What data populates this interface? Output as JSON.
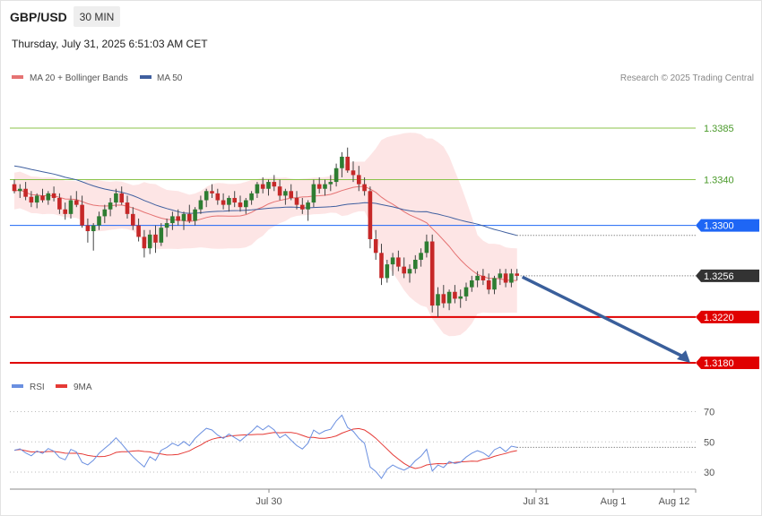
{
  "header": {
    "symbol": "GBP/USD",
    "timeframe": "30 MIN",
    "datetime": "Thursday, July 31, 2025 6:51:03 AM CET"
  },
  "legend": {
    "ma20": "MA 20 + Bollinger Bands",
    "ma50": "MA 50",
    "rsi": "RSI",
    "rsi_ma": "9MA"
  },
  "credit": "Research © 2025 Trading Central",
  "colors": {
    "bull": "#2e7d32",
    "bear": "#c62828",
    "ma20": "#e57373",
    "ma50": "#3f5f9f",
    "bands": "#fde0e0",
    "resistance": "#8bc34a",
    "pivot": "#1e66f5",
    "support": "#e00000",
    "last_price": "#333333",
    "rsi": "#6a8fe0",
    "rsi_ma": "#e53935",
    "arrow": "#3a5f9b"
  },
  "chart_data": {
    "type": "candlestick",
    "price_axis_ylim": [
      3.3125,
      1.341
    ],
    "levels": [
      {
        "value": 1.3385,
        "label": "1.3385",
        "kind": "resistance"
      },
      {
        "value": 1.334,
        "label": "1.3340",
        "kind": "resistance"
      },
      {
        "value": 1.33,
        "label": "1.3300",
        "kind": "pivot"
      },
      {
        "value": 1.3256,
        "label": "1.3256",
        "kind": "last"
      },
      {
        "value": 1.322,
        "label": "1.3220",
        "kind": "support"
      },
      {
        "value": 1.318,
        "label": "1.3180",
        "kind": "support"
      }
    ],
    "x_labels": [
      "Jul 30",
      "Jul 31",
      "Aug 1",
      "Aug 12"
    ],
    "rsi_ticks": [
      70,
      50,
      30
    ],
    "rsi_ylim": [
      18,
      82
    ],
    "forecast_arrow": {
      "from": 1.3255,
      "to": 1.318
    },
    "candles": [
      [
        1.3336,
        1.334,
        1.3328,
        1.333
      ],
      [
        1.333,
        1.3336,
        1.3324,
        1.3332
      ],
      [
        1.3332,
        1.3338,
        1.3322,
        1.3325
      ],
      [
        1.3325,
        1.333,
        1.3316,
        1.332
      ],
      [
        1.332,
        1.3328,
        1.3315,
        1.3326
      ],
      [
        1.3326,
        1.3332,
        1.332,
        1.3322
      ],
      [
        1.3322,
        1.333,
        1.3318,
        1.3328
      ],
      [
        1.3328,
        1.3334,
        1.3321,
        1.3324
      ],
      [
        1.3324,
        1.3328,
        1.331,
        1.3314
      ],
      [
        1.3314,
        1.332,
        1.3305,
        1.331
      ],
      [
        1.331,
        1.3326,
        1.3306,
        1.3322
      ],
      [
        1.3322,
        1.333,
        1.3316,
        1.3318
      ],
      [
        1.3318,
        1.3326,
        1.3298,
        1.33
      ],
      [
        1.33,
        1.3306,
        1.3285,
        1.3295
      ],
      [
        1.3295,
        1.3302,
        1.3278,
        1.33
      ],
      [
        1.33,
        1.3312,
        1.3296,
        1.3308
      ],
      [
        1.3308,
        1.3318,
        1.3302,
        1.3314
      ],
      [
        1.3314,
        1.3324,
        1.3308,
        1.332
      ],
      [
        1.332,
        1.3332,
        1.3316,
        1.3328
      ],
      [
        1.3328,
        1.3334,
        1.3318,
        1.332
      ],
      [
        1.332,
        1.3326,
        1.3306,
        1.331
      ],
      [
        1.331,
        1.3316,
        1.3296,
        1.33
      ],
      [
        1.33,
        1.3306,
        1.3286,
        1.329
      ],
      [
        1.329,
        1.3296,
        1.3272,
        1.328
      ],
      [
        1.328,
        1.3296,
        1.3275,
        1.3292
      ],
      [
        1.3292,
        1.33,
        1.3276,
        1.3285
      ],
      [
        1.3285,
        1.3302,
        1.3282,
        1.3298
      ],
      [
        1.3298,
        1.3306,
        1.329,
        1.3302
      ],
      [
        1.3302,
        1.3312,
        1.3296,
        1.3308
      ],
      [
        1.3308,
        1.3314,
        1.33,
        1.3304
      ],
      [
        1.3304,
        1.3312,
        1.3296,
        1.331
      ],
      [
        1.331,
        1.3318,
        1.3302,
        1.3304
      ],
      [
        1.3304,
        1.3316,
        1.33,
        1.3314
      ],
      [
        1.3314,
        1.3326,
        1.331,
        1.3322
      ],
      [
        1.3322,
        1.3332,
        1.3316,
        1.333
      ],
      [
        1.333,
        1.3336,
        1.3324,
        1.3328
      ],
      [
        1.3328,
        1.3332,
        1.3318,
        1.3322
      ],
      [
        1.3322,
        1.3328,
        1.3314,
        1.3318
      ],
      [
        1.3318,
        1.3326,
        1.3312,
        1.3324
      ],
      [
        1.3324,
        1.333,
        1.3316,
        1.332
      ],
      [
        1.332,
        1.3326,
        1.3312,
        1.3316
      ],
      [
        1.3316,
        1.3324,
        1.331,
        1.3322
      ],
      [
        1.3322,
        1.333,
        1.3318,
        1.3328
      ],
      [
        1.3328,
        1.3338,
        1.3324,
        1.3336
      ],
      [
        1.3336,
        1.3342,
        1.3328,
        1.3332
      ],
      [
        1.3332,
        1.334,
        1.3326,
        1.3338
      ],
      [
        1.3338,
        1.3344,
        1.333,
        1.3334
      ],
      [
        1.3334,
        1.334,
        1.3322,
        1.3326
      ],
      [
        1.3326,
        1.3332,
        1.3318,
        1.333
      ],
      [
        1.333,
        1.3336,
        1.3322,
        1.3324
      ],
      [
        1.3324,
        1.333,
        1.3314,
        1.3318
      ],
      [
        1.3318,
        1.3324,
        1.331,
        1.3314
      ],
      [
        1.3314,
        1.3322,
        1.3304,
        1.332
      ],
      [
        1.332,
        1.334,
        1.3316,
        1.3336
      ],
      [
        1.3336,
        1.3342,
        1.3328,
        1.3332
      ],
      [
        1.3332,
        1.334,
        1.3326,
        1.3336
      ],
      [
        1.3336,
        1.3344,
        1.333,
        1.3338
      ],
      [
        1.3338,
        1.3354,
        1.3334,
        1.335
      ],
      [
        1.335,
        1.3364,
        1.3342,
        1.336
      ],
      [
        1.336,
        1.3368,
        1.3346,
        1.3348
      ],
      [
        1.3348,
        1.3356,
        1.3338,
        1.3344
      ],
      [
        1.3344,
        1.3352,
        1.333,
        1.3336
      ],
      [
        1.3336,
        1.3342,
        1.3326,
        1.333
      ],
      [
        1.333,
        1.3334,
        1.328,
        1.3288
      ],
      [
        1.3288,
        1.3296,
        1.327,
        1.3276
      ],
      [
        1.3276,
        1.3284,
        1.3248,
        1.3254
      ],
      [
        1.3254,
        1.327,
        1.325,
        1.3266
      ],
      [
        1.3266,
        1.3276,
        1.3256,
        1.3272
      ],
      [
        1.3272,
        1.3278,
        1.326,
        1.3264
      ],
      [
        1.3264,
        1.3272,
        1.3254,
        1.3258
      ],
      [
        1.3258,
        1.3266,
        1.325,
        1.3262
      ],
      [
        1.3262,
        1.3274,
        1.3258,
        1.327
      ],
      [
        1.327,
        1.328,
        1.3264,
        1.3276
      ],
      [
        1.3276,
        1.3292,
        1.3272,
        1.3286
      ],
      [
        1.3286,
        1.3292,
        1.3224,
        1.323
      ],
      [
        1.323,
        1.3246,
        1.322,
        1.324
      ],
      [
        1.324,
        1.3248,
        1.3228,
        1.3232
      ],
      [
        1.3232,
        1.3244,
        1.3226,
        1.3242
      ],
      [
        1.3242,
        1.3248,
        1.3232,
        1.3236
      ],
      [
        1.3236,
        1.3244,
        1.3228,
        1.3238
      ],
      [
        1.3238,
        1.325,
        1.3234,
        1.3246
      ],
      [
        1.3246,
        1.3256,
        1.3242,
        1.3252
      ],
      [
        1.3252,
        1.326,
        1.3246,
        1.3256
      ],
      [
        1.3256,
        1.3262,
        1.3248,
        1.3252
      ],
      [
        1.3252,
        1.3258,
        1.324,
        1.3244
      ],
      [
        1.3244,
        1.3256,
        1.324,
        1.3254
      ],
      [
        1.3254,
        1.3262,
        1.3248,
        1.3258
      ],
      [
        1.3258,
        1.3262,
        1.3246,
        1.325
      ],
      [
        1.325,
        1.3262,
        1.3246,
        1.3258
      ],
      [
        1.3258,
        1.3262,
        1.3252,
        1.3256
      ]
    ]
  }
}
